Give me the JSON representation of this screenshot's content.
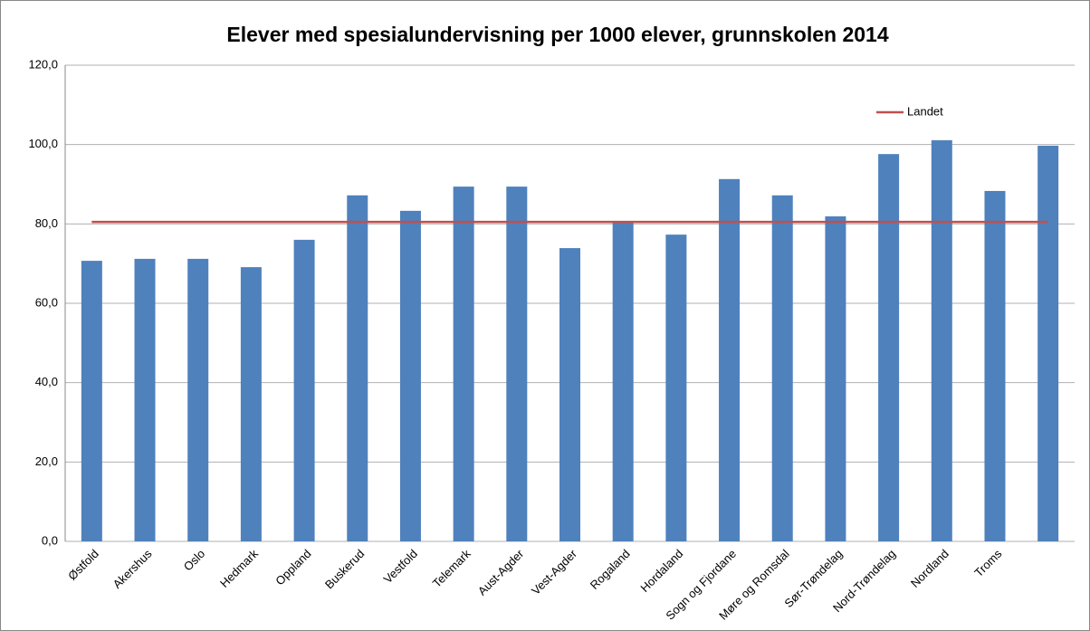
{
  "chart_data": {
    "type": "bar",
    "title": "Elever med spesialundervisning per 1000 elever, grunnskolen 2014",
    "categories": [
      "Østfold",
      "Akershus",
      "Oslo",
      "Hedmark",
      "Oppland",
      "Buskerud",
      "Vestfold",
      "Telemark",
      "Aust-Agder",
      "Vest-Agder",
      "Rogaland",
      "Hordaland",
      "Sogn og Fjordane",
      "Møre og Romsdal",
      "Sør-Trøndelag",
      "Nord-Trøndelag",
      "Nordland",
      "Troms",
      null
    ],
    "values": [
      70.7,
      71.2,
      71.2,
      69.1,
      76.0,
      87.2,
      83.3,
      89.4,
      89.4,
      73.9,
      80.5,
      77.3,
      91.3,
      87.2,
      81.9,
      97.6,
      101.1,
      88.3,
      99.7
    ],
    "color": "#4f81bd",
    "lines": [
      {
        "name": "Landet",
        "color": "#c0504d",
        "values": [
          80.5,
          80.5,
          80.5,
          80.5,
          80.5,
          80.5,
          80.5,
          80.5,
          80.5,
          80.5,
          80.5,
          80.5,
          80.5,
          80.5,
          80.5,
          80.5,
          80.5,
          80.5,
          80.5
        ]
      }
    ],
    "ylim": [
      0,
      120
    ],
    "yticks": [
      {
        "value": 0,
        "label": "0,0"
      },
      {
        "value": 20,
        "label": "20,0"
      },
      {
        "value": 40,
        "label": "40,0"
      },
      {
        "value": 60,
        "label": "60,0"
      },
      {
        "value": 80,
        "label": "80,0"
      },
      {
        "value": 100,
        "label": "100,0"
      },
      {
        "value": 120,
        "label": "120,0"
      }
    ],
    "grid": true,
    "legend": "top-right"
  }
}
